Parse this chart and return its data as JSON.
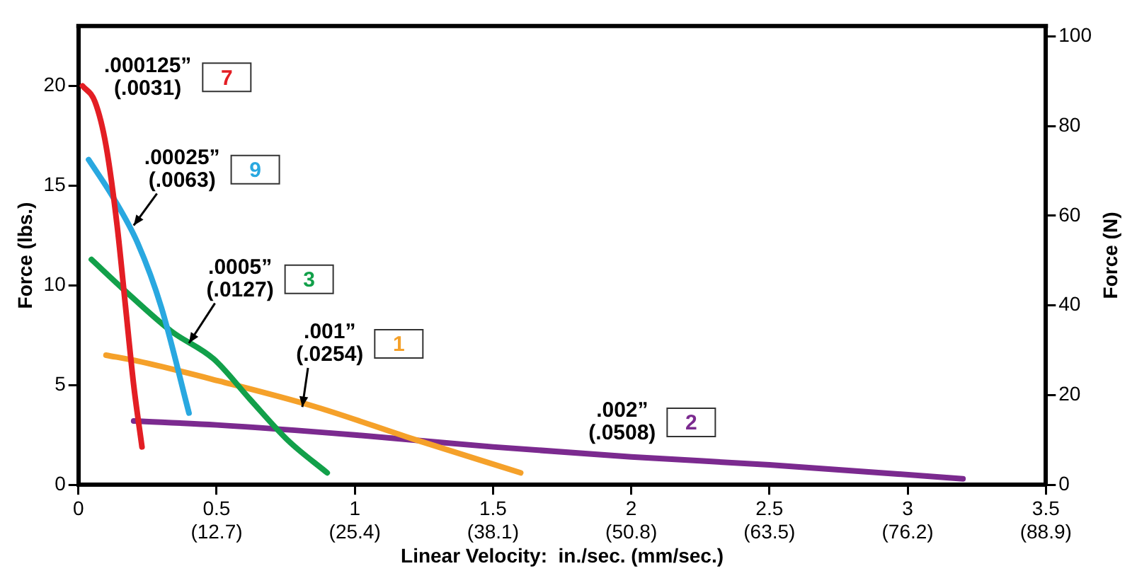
{
  "chart_data": {
    "type": "line",
    "xlabel": "Linear Velocity:  in./sec. (mm/sec.)",
    "ylabel": "Force (lbs.)",
    "y2label": "Force (N)",
    "xlim": [
      0,
      3.5
    ],
    "xticks": [
      0,
      0.5,
      1,
      1.5,
      2,
      2.5,
      3,
      3.5
    ],
    "x2lim": [
      0,
      88.9
    ],
    "x2ticks": [
      {
        "value": 12.7,
        "label": "(12.7)"
      },
      {
        "value": 25.4,
        "label": "(25.4)"
      },
      {
        "value": 38.1,
        "label": "(38.1)"
      },
      {
        "value": 50.8,
        "label": "(50.8)"
      },
      {
        "value": 63.5,
        "label": "(63.5)"
      },
      {
        "value": 76.2,
        "label": "(76.2)"
      },
      {
        "value": 88.9,
        "label": "(88.9)"
      }
    ],
    "ylim": [
      0,
      23
    ],
    "yticks": [
      0,
      5,
      10,
      15,
      20
    ],
    "y2lim": [
      0,
      102.3
    ],
    "y2ticks": [
      0,
      20,
      40,
      60,
      80,
      100
    ],
    "grid": false,
    "legend": false,
    "marker": "none",
    "line_style": "solid",
    "series": [
      {
        "name": "7",
        "color": "#e31e24",
        "x": [
          0.015,
          0.06,
          0.1,
          0.14,
          0.17,
          0.2,
          0.23
        ],
        "values": [
          20,
          19.2,
          17,
          13,
          9,
          5,
          1.9
        ]
      },
      {
        "name": "9",
        "color": "#29a8e0",
        "x": [
          0.037,
          0.126,
          0.215,
          0.3,
          0.4
        ],
        "values": [
          16.3,
          14.4,
          12.1,
          8.9,
          3.6
        ]
      },
      {
        "name": "3",
        "color": "#12a04a",
        "x": [
          0.047,
          0.163,
          0.336,
          0.49,
          0.62,
          0.76,
          0.9
        ],
        "values": [
          11.3,
          9.8,
          7.7,
          6.3,
          4.3,
          2.2,
          0.6
        ]
      },
      {
        "name": "1",
        "color": "#f5a12a",
        "x": [
          0.1,
          0.215,
          0.51,
          0.86,
          1.21,
          1.6
        ],
        "values": [
          6.5,
          6.2,
          5.2,
          3.9,
          2.3,
          0.6
        ]
      },
      {
        "name": "2",
        "color": "#7b2a8f",
        "x": [
          0.2,
          0.5,
          1,
          1.5,
          2,
          2.5,
          3.2
        ],
        "values": [
          3.2,
          3,
          2.5,
          1.9,
          1.4,
          1,
          0.3
        ]
      }
    ],
    "annotations": [
      ".000125”",
      "(.0031)",
      ".00025”",
      {
        "text": "(.0063)",
        "x": 0.2,
        "y": 13
      },
      ".0005”",
      {
        "text": "(.0127)",
        "x": 0.4,
        "y": 7.1
      },
      ".001”",
      {
        "text": "(.0254)",
        "x": 0.81,
        "y": 3.9
      },
      ".002”",
      "(.0508)"
    ]
  }
}
